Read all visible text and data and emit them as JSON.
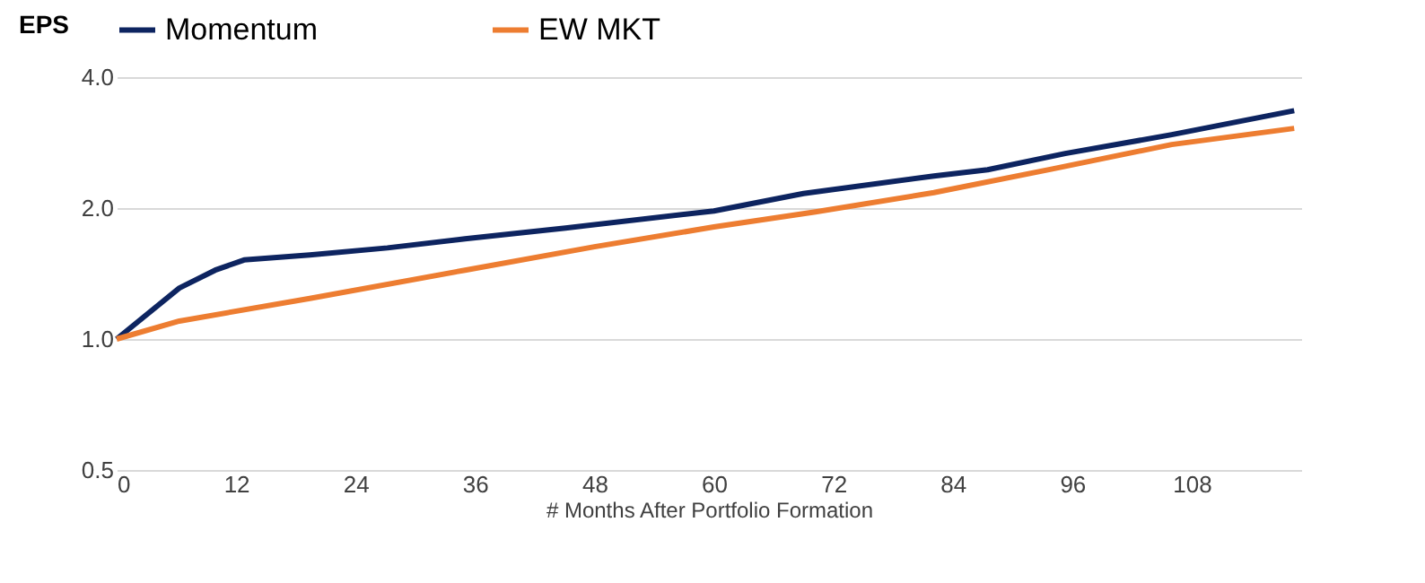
{
  "chart_data": {
    "type": "line",
    "ylabel": "EPS",
    "xlabel": "# Months After Portfolio Formation",
    "xlim": [
      0,
      119
    ],
    "xticks": [
      0,
      12,
      24,
      36,
      48,
      60,
      72,
      84,
      96,
      108
    ],
    "ylim": [
      0.5,
      4.0
    ],
    "yticks": [
      {
        "value": 0.5,
        "label": "0.5"
      },
      {
        "value": 1,
        "label": "1.0"
      },
      {
        "value": 2,
        "label": "2.0"
      },
      {
        "value": 4,
        "label": "4.0"
      }
    ],
    "log": "y",
    "grid": "y",
    "legend": "top",
    "line_style": "solid",
    "marker": "none",
    "series": [
      {
        "name": "Momentum",
        "color": "#0d2460",
        "x": [
          0,
          6.3,
          9.9,
          12.8,
          19.4,
          27.2,
          35,
          45.1,
          60,
          69,
          82.1,
          87.5,
          95.3,
          106,
          118.3
        ],
        "values": [
          1.0,
          1.31,
          1.44,
          1.52,
          1.56,
          1.62,
          1.7,
          1.8,
          1.97,
          2.16,
          2.37,
          2.45,
          2.67,
          2.95,
          3.35
        ]
      },
      {
        "name": "EW MKT",
        "color": "#ed7d31",
        "x": [
          0,
          6.3,
          19.4,
          35,
          48,
          60,
          70.2,
          82.1,
          94,
          106,
          118.3
        ],
        "values": [
          1.0,
          1.1,
          1.24,
          1.44,
          1.63,
          1.81,
          1.96,
          2.17,
          2.46,
          2.8,
          3.05
        ]
      }
    ]
  }
}
